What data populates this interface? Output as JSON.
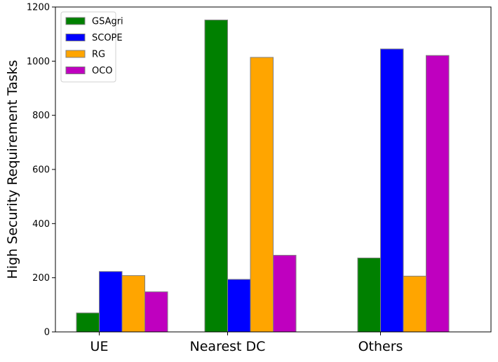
{
  "chart_data": {
    "type": "bar",
    "title": "",
    "xlabel": "",
    "ylabel": "High Security Requirement Tasks",
    "categories": [
      "UE",
      "Nearest DC",
      "Others"
    ],
    "ylim": [
      0,
      1200
    ],
    "yticks": [
      0,
      200,
      400,
      600,
      800,
      1000,
      1200
    ],
    "grid": false,
    "legend_position": "top-left",
    "series": [
      {
        "name": "GSAgri",
        "color": "#008000",
        "values": [
          70,
          1152,
          273
        ]
      },
      {
        "name": "SCOPE",
        "color": "#0000ff",
        "values": [
          223,
          194,
          1045
        ]
      },
      {
        "name": "RG",
        "color": "#ffa500",
        "values": [
          208,
          1014,
          206
        ]
      },
      {
        "name": "OCO",
        "color": "#bf00bf",
        "values": [
          148,
          283,
          1021
        ]
      }
    ]
  }
}
